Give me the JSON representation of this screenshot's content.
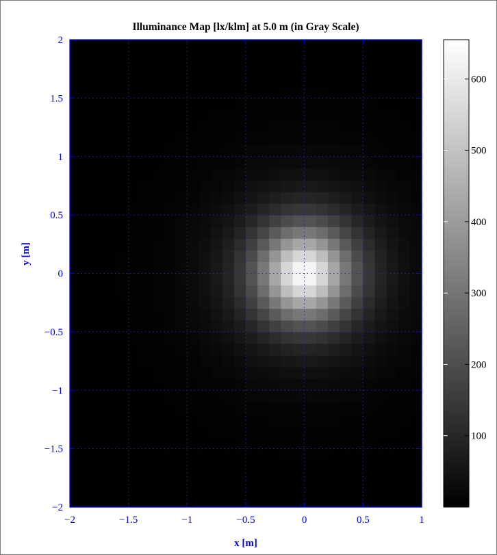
{
  "chart_data": {
    "type": "heatmap",
    "title": "Illuminance Map [lx/klm] at 5.0 m (in Gray Scale)",
    "xlabel": "x [m]",
    "ylabel": "y [m]",
    "xlim": [
      -2,
      1
    ],
    "ylim": [
      -2,
      2
    ],
    "x_ticks": [
      -2,
      -1.5,
      -1,
      -0.5,
      0,
      0.5,
      1
    ],
    "x_tick_labels": [
      "−2",
      "−1.5",
      "−1",
      "−0.5",
      "0",
      "0.5",
      "1"
    ],
    "y_ticks": [
      -2,
      -1.5,
      -1,
      -0.5,
      0,
      0.5,
      1,
      1.5,
      2
    ],
    "y_tick_labels": [
      "−2",
      "−1.5",
      "−1",
      "−0.5",
      "0",
      "0.5",
      "1",
      "1.5",
      "2"
    ],
    "grid": true,
    "colormap": "gray",
    "peak_location": [
      0,
      0
    ],
    "peak_value": 650,
    "color_range": [
      0,
      655
    ],
    "colorbar": {
      "ticks": [
        100,
        200,
        300,
        400,
        500,
        600
      ],
      "tick_labels": [
        "100",
        "200",
        "300",
        "400",
        "500",
        "600"
      ]
    }
  },
  "colors": {
    "axis": "#0000ee",
    "grid": "#2a2aa0",
    "title": "#000000"
  }
}
